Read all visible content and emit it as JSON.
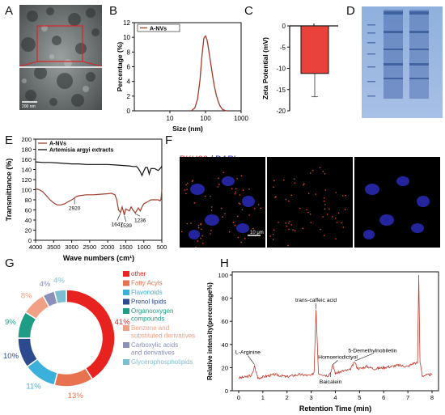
{
  "panel_labels": [
    "A",
    "B",
    "C",
    "D",
    "E",
    "F",
    "G",
    "H"
  ],
  "panel_a": {
    "scale_bar": "200 nm"
  },
  "panel_f": {
    "stain1": "PKH26",
    "sep": "/",
    "stain2": "DAPI",
    "scale_bar": "10 μm",
    "stain1_color": "#d63b2a",
    "stain2_color": "#2a2ad6"
  },
  "chart_data": [
    {
      "type": "line",
      "panel": "B",
      "xlabel": "Size (nm)",
      "ylabel": "Percentage (%)",
      "xscale": "log",
      "xlim": [
        1,
        1000
      ],
      "ylim": [
        0,
        12
      ],
      "xticks": [
        "1",
        "10",
        "100",
        "1000"
      ],
      "yticks": [
        "0",
        "2",
        "4",
        "6",
        "8",
        "10",
        "12"
      ],
      "legend": "top-left",
      "series": [
        {
          "name": "A-NVs",
          "color": "#a23a2b",
          "x": [
            40,
            50,
            60,
            70,
            80,
            90,
            100,
            110,
            120,
            140,
            160,
            180,
            200,
            230,
            260,
            300,
            350,
            400
          ],
          "y": [
            0,
            0.4,
            1.6,
            4.2,
            7.6,
            9.9,
            10.2,
            9.7,
            8.6,
            6.5,
            4.6,
            3.2,
            2.2,
            1.2,
            0.6,
            0.2,
            0.05,
            0
          ]
        }
      ]
    },
    {
      "type": "bar",
      "panel": "C",
      "ylabel": "Zeta Potential (mV)",
      "ylim": [
        -20,
        0
      ],
      "yticks": [
        "0",
        "-5",
        "-10",
        "-15",
        "-20"
      ],
      "categories": [
        ""
      ],
      "values": [
        -11.2
      ],
      "error": [
        5.5
      ],
      "color": "#e8423a"
    },
    {
      "type": "line",
      "panel": "E",
      "xlabel": "Wave numbers (cm¹)",
      "ylabel": "Transmittance (%)",
      "xlim": [
        4000,
        500
      ],
      "ylim": [
        0,
        200
      ],
      "xticks": [
        "4000",
        "3500",
        "3000",
        "2500",
        "2000",
        "1500",
        "1000",
        "500"
      ],
      "yticks": [
        "0",
        "20",
        "40",
        "60",
        "80",
        "100",
        "120",
        "140",
        "160",
        "180",
        "200"
      ],
      "legend": "top-left",
      "annotations": [
        {
          "text": "2920",
          "x": 2920,
          "y": 84
        },
        {
          "text": "1647",
          "x": 1647,
          "y": 55
        },
        {
          "text": "1539",
          "x": 1539,
          "y": 50
        },
        {
          "text": "1236",
          "x": 1236,
          "y": 54
        }
      ],
      "series": [
        {
          "name": "A-NVs",
          "color": "#a23a2b",
          "x": [
            4000,
            3900,
            3800,
            3700,
            3600,
            3500,
            3400,
            3300,
            3200,
            3100,
            3000,
            2950,
            2920,
            2880,
            2800,
            2600,
            2400,
            2200,
            2000,
            1900,
            1800,
            1750,
            1700,
            1647,
            1600,
            1539,
            1500,
            1450,
            1400,
            1350,
            1300,
            1236,
            1150,
            1100,
            1050,
            1000,
            900,
            800,
            700,
            600,
            550,
            520,
            505,
            500
          ],
          "y": [
            102,
            100,
            96,
            88,
            80,
            74,
            70,
            70,
            72,
            76,
            80,
            82,
            84,
            86,
            88,
            90,
            90,
            91,
            92,
            93,
            90,
            80,
            60,
            55,
            66,
            50,
            62,
            60,
            58,
            66,
            60,
            54,
            64,
            58,
            66,
            72,
            76,
            80,
            80,
            80,
            78,
            82,
            96,
            100
          ]
        },
        {
          "name": "Artemisia argyi extracts",
          "color": "#111111",
          "x": [
            4000,
            3800,
            3600,
            3400,
            3200,
            3000,
            2800,
            2600,
            2400,
            2200,
            2000,
            1800,
            1600,
            1400,
            1300,
            1200,
            1150,
            1100,
            1050,
            1000,
            950,
            900,
            850,
            800,
            700,
            600,
            520,
            505,
            500
          ],
          "y": [
            155,
            154,
            154,
            153,
            152,
            151,
            151,
            150,
            150,
            150,
            150,
            149,
            148,
            147,
            146,
            146,
            142,
            136,
            128,
            137,
            144,
            144,
            131,
            142,
            142,
            138,
            144,
            146,
            147
          ]
        }
      ]
    },
    {
      "type": "pie",
      "panel": "G",
      "labels": [
        "other",
        "Fatty Acyls",
        "Flavonoids",
        "Prenol lipids",
        "Organooxygen compounds",
        "Benzene and substituted derivatives",
        "Carboxylic acids and derivatives",
        "Glycerophospholipids"
      ],
      "values": [
        41,
        13,
        11,
        10,
        9,
        8,
        4,
        4
      ],
      "slice_labels": [
        "41%",
        "13%",
        "11%",
        "10%",
        "9%",
        "8%",
        "4%",
        "4%"
      ],
      "colors": [
        "#e8231f",
        "#e8724f",
        "#3ab0da",
        "#2c4a8e",
        "#1e9c86",
        "#f0a085",
        "#8a90b8",
        "#7dbfd2"
      ],
      "legend": "right"
    },
    {
      "type": "line",
      "panel": "H",
      "xlabel": "Retention Time (min)",
      "ylabel": "Relative intensity(percentage%)",
      "xlim": [
        0,
        8
      ],
      "ylim": [
        0,
        100
      ],
      "xticks": [
        "0",
        "1",
        "2",
        "3",
        "4",
        "5",
        "6",
        "7",
        "8"
      ],
      "yticks": [
        "0",
        "20",
        "40",
        "60",
        "80",
        "100"
      ],
      "annotations": [
        {
          "text": "L-Arginine",
          "x": 0.65,
          "y": 22
        },
        {
          "text": "trans-caffeic acid",
          "x": 3.2,
          "y": 70
        },
        {
          "text": "Baicalein",
          "x": 3.8,
          "y": 16
        },
        {
          "text": "Homoeriodictyol",
          "x": 3.9,
          "y": 22
        },
        {
          "text": "5-Demethylnobiletin",
          "x": 4.8,
          "y": 25
        }
      ],
      "series": [
        {
          "name": "",
          "color": "#c0392b",
          "x": [
            0,
            0.3,
            0.5,
            0.6,
            0.65,
            0.72,
            0.8,
            1.0,
            1.5,
            2.0,
            2.2,
            2.5,
            3.0,
            3.12,
            3.2,
            3.3,
            3.5,
            3.7,
            3.8,
            3.9,
            4.0,
            4.3,
            4.6,
            4.8,
            4.9,
            5.0,
            5.3,
            5.6,
            6.0,
            6.3,
            6.6,
            7.0,
            7.25,
            7.4,
            7.45,
            7.5,
            7.6,
            8.0
          ],
          "y": [
            11,
            12,
            13,
            16,
            22,
            16,
            11,
            12,
            14,
            12,
            13,
            14,
            13,
            16,
            70,
            15,
            14,
            13,
            16,
            22,
            15,
            17,
            18,
            25,
            20,
            19,
            21,
            19,
            20,
            21,
            22,
            21,
            24,
            24,
            100,
            25,
            13,
            14
          ]
        }
      ]
    }
  ]
}
